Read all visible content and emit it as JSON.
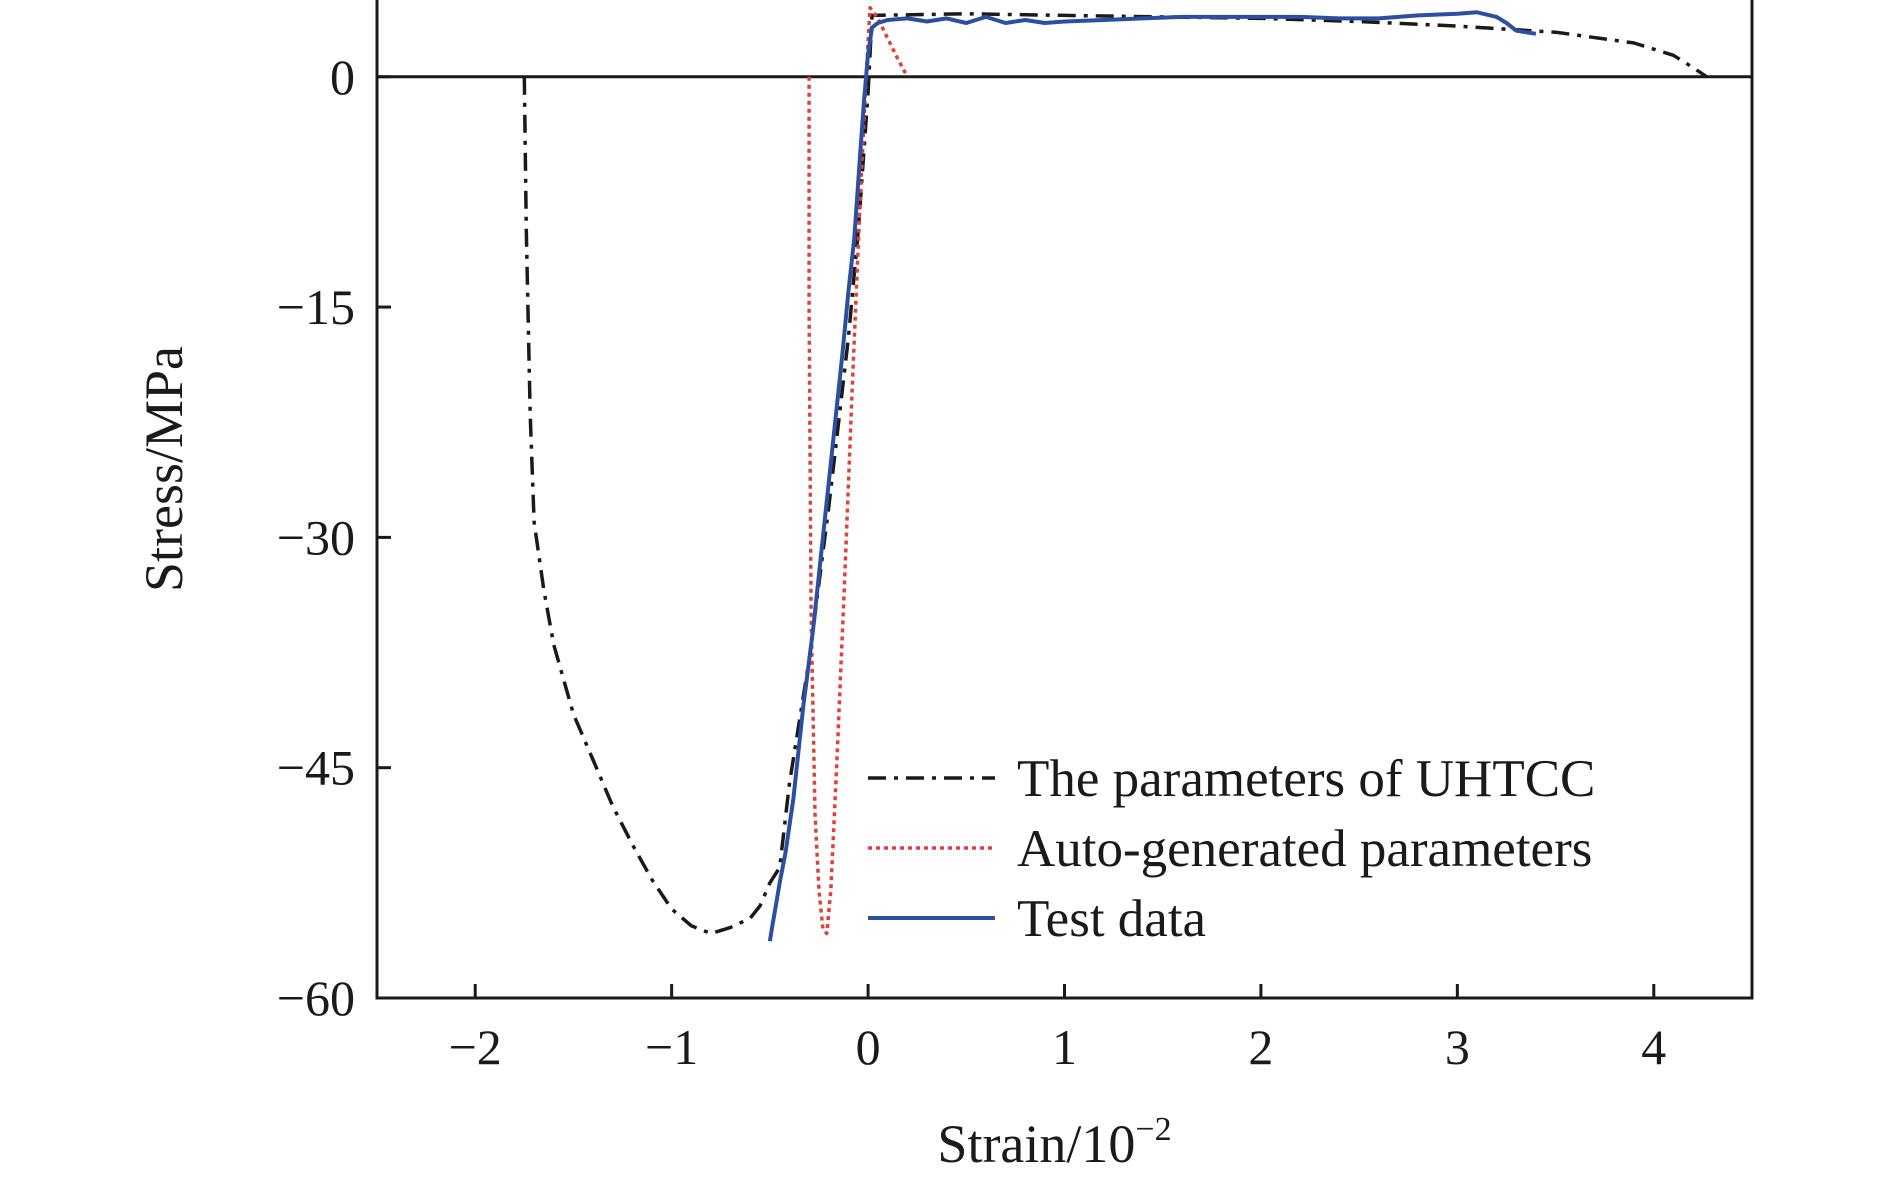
{
  "chart_data": {
    "type": "line",
    "xlabel": "Strain/10",
    "xlabel_exponent": "−2",
    "ylabel": "Stress/MPa",
    "xlim": [
      -2.5,
      4.5
    ],
    "ylim": [
      -60,
      5
    ],
    "x_ticks": [
      -2,
      -1,
      0,
      1,
      2,
      3,
      4
    ],
    "x_tick_labels": [
      "−2",
      "−1",
      "0",
      "1",
      "2",
      "3",
      "4"
    ],
    "y_ticks": [
      -60,
      -45,
      -30,
      -15,
      0
    ],
    "y_tick_labels": [
      "−60",
      "−45",
      "−30",
      "−15",
      "0"
    ],
    "zero_line": true,
    "grid": false,
    "legend_position": "bottom-right",
    "series": [
      {
        "name": "The parameters of UHTCC",
        "color": "#1a1a1a",
        "dash": "dashdot",
        "points": [
          [
            -1.75,
            0
          ],
          [
            -1.74,
            -10
          ],
          [
            -1.72,
            -22
          ],
          [
            -1.7,
            -29
          ],
          [
            -1.65,
            -33.5
          ],
          [
            -1.6,
            -37
          ],
          [
            -1.5,
            -41.5
          ],
          [
            -1.4,
            -44.5
          ],
          [
            -1.3,
            -47.5
          ],
          [
            -1.2,
            -50
          ],
          [
            -1.1,
            -52.3
          ],
          [
            -1.0,
            -54.2
          ],
          [
            -0.9,
            -55.3
          ],
          [
            -0.8,
            -55.8
          ],
          [
            -0.7,
            -55.4
          ],
          [
            -0.6,
            -54.8
          ],
          [
            -0.55,
            -54
          ],
          [
            -0.5,
            -52.5
          ],
          [
            -0.45,
            -51.5
          ],
          [
            -0.4,
            -46
          ],
          [
            -0.3,
            -38
          ],
          [
            -0.2,
            -28
          ],
          [
            -0.1,
            -17
          ],
          [
            -0.05,
            -10
          ],
          [
            0.0,
            -1
          ],
          [
            0.02,
            4
          ],
          [
            0.5,
            4.1
          ],
          [
            1.0,
            4.0
          ],
          [
            1.5,
            3.9
          ],
          [
            2.0,
            3.8
          ],
          [
            2.5,
            3.6
          ],
          [
            3.0,
            3.3
          ],
          [
            3.5,
            2.9
          ],
          [
            3.9,
            2.2
          ],
          [
            4.1,
            1.4
          ],
          [
            4.2,
            0.6
          ],
          [
            4.27,
            0
          ]
        ]
      },
      {
        "name": "Auto-generated parameters",
        "color": "#e0403a",
        "dash": "dotted",
        "points": [
          [
            -0.3,
            0
          ],
          [
            -0.3,
            -15
          ],
          [
            -0.29,
            -35
          ],
          [
            -0.27,
            -48
          ],
          [
            -0.25,
            -53
          ],
          [
            -0.23,
            -55.5
          ],
          [
            -0.21,
            -55.8
          ],
          [
            -0.19,
            -53
          ],
          [
            -0.16,
            -45
          ],
          [
            -0.12,
            -33
          ],
          [
            -0.08,
            -20
          ],
          [
            -0.04,
            -8
          ],
          [
            -0.01,
            0
          ],
          [
            0.01,
            4.5
          ],
          [
            0.05,
            3.8
          ],
          [
            0.1,
            2.5
          ],
          [
            0.15,
            1.2
          ],
          [
            0.2,
            0
          ]
        ]
      },
      {
        "name": "Test data",
        "color": "#2c4fa0",
        "dash": "solid",
        "points": [
          [
            -0.5,
            -56.3
          ],
          [
            -0.49,
            -55.5
          ],
          [
            -0.47,
            -54
          ],
          [
            -0.45,
            -52.5
          ],
          [
            -0.42,
            -50.5
          ],
          [
            -0.38,
            -47
          ],
          [
            -0.33,
            -41
          ],
          [
            -0.28,
            -36
          ],
          [
            -0.23,
            -30
          ],
          [
            -0.18,
            -24
          ],
          [
            -0.13,
            -18
          ],
          [
            -0.1,
            -14
          ],
          [
            -0.07,
            -10.5
          ],
          [
            -0.04,
            -5
          ],
          [
            -0.02,
            -1.5
          ],
          [
            0.0,
            1.5
          ],
          [
            0.02,
            3.2
          ],
          [
            0.05,
            3.5
          ],
          [
            0.1,
            3.7
          ],
          [
            0.2,
            3.8
          ],
          [
            0.3,
            3.6
          ],
          [
            0.4,
            3.8
          ],
          [
            0.5,
            3.5
          ],
          [
            0.6,
            3.9
          ],
          [
            0.7,
            3.5
          ],
          [
            0.8,
            3.7
          ],
          [
            0.9,
            3.5
          ],
          [
            1.0,
            3.6
          ],
          [
            1.2,
            3.7
          ],
          [
            1.4,
            3.8
          ],
          [
            1.6,
            3.9
          ],
          [
            1.8,
            3.9
          ],
          [
            2.0,
            3.9
          ],
          [
            2.2,
            3.9
          ],
          [
            2.4,
            3.8
          ],
          [
            2.6,
            3.8
          ],
          [
            2.8,
            4.0
          ],
          [
            3.0,
            4.1
          ],
          [
            3.1,
            4.2
          ],
          [
            3.2,
            3.9
          ],
          [
            3.25,
            3.5
          ],
          [
            3.3,
            3.0
          ],
          [
            3.4,
            2.8
          ]
        ]
      }
    ]
  }
}
